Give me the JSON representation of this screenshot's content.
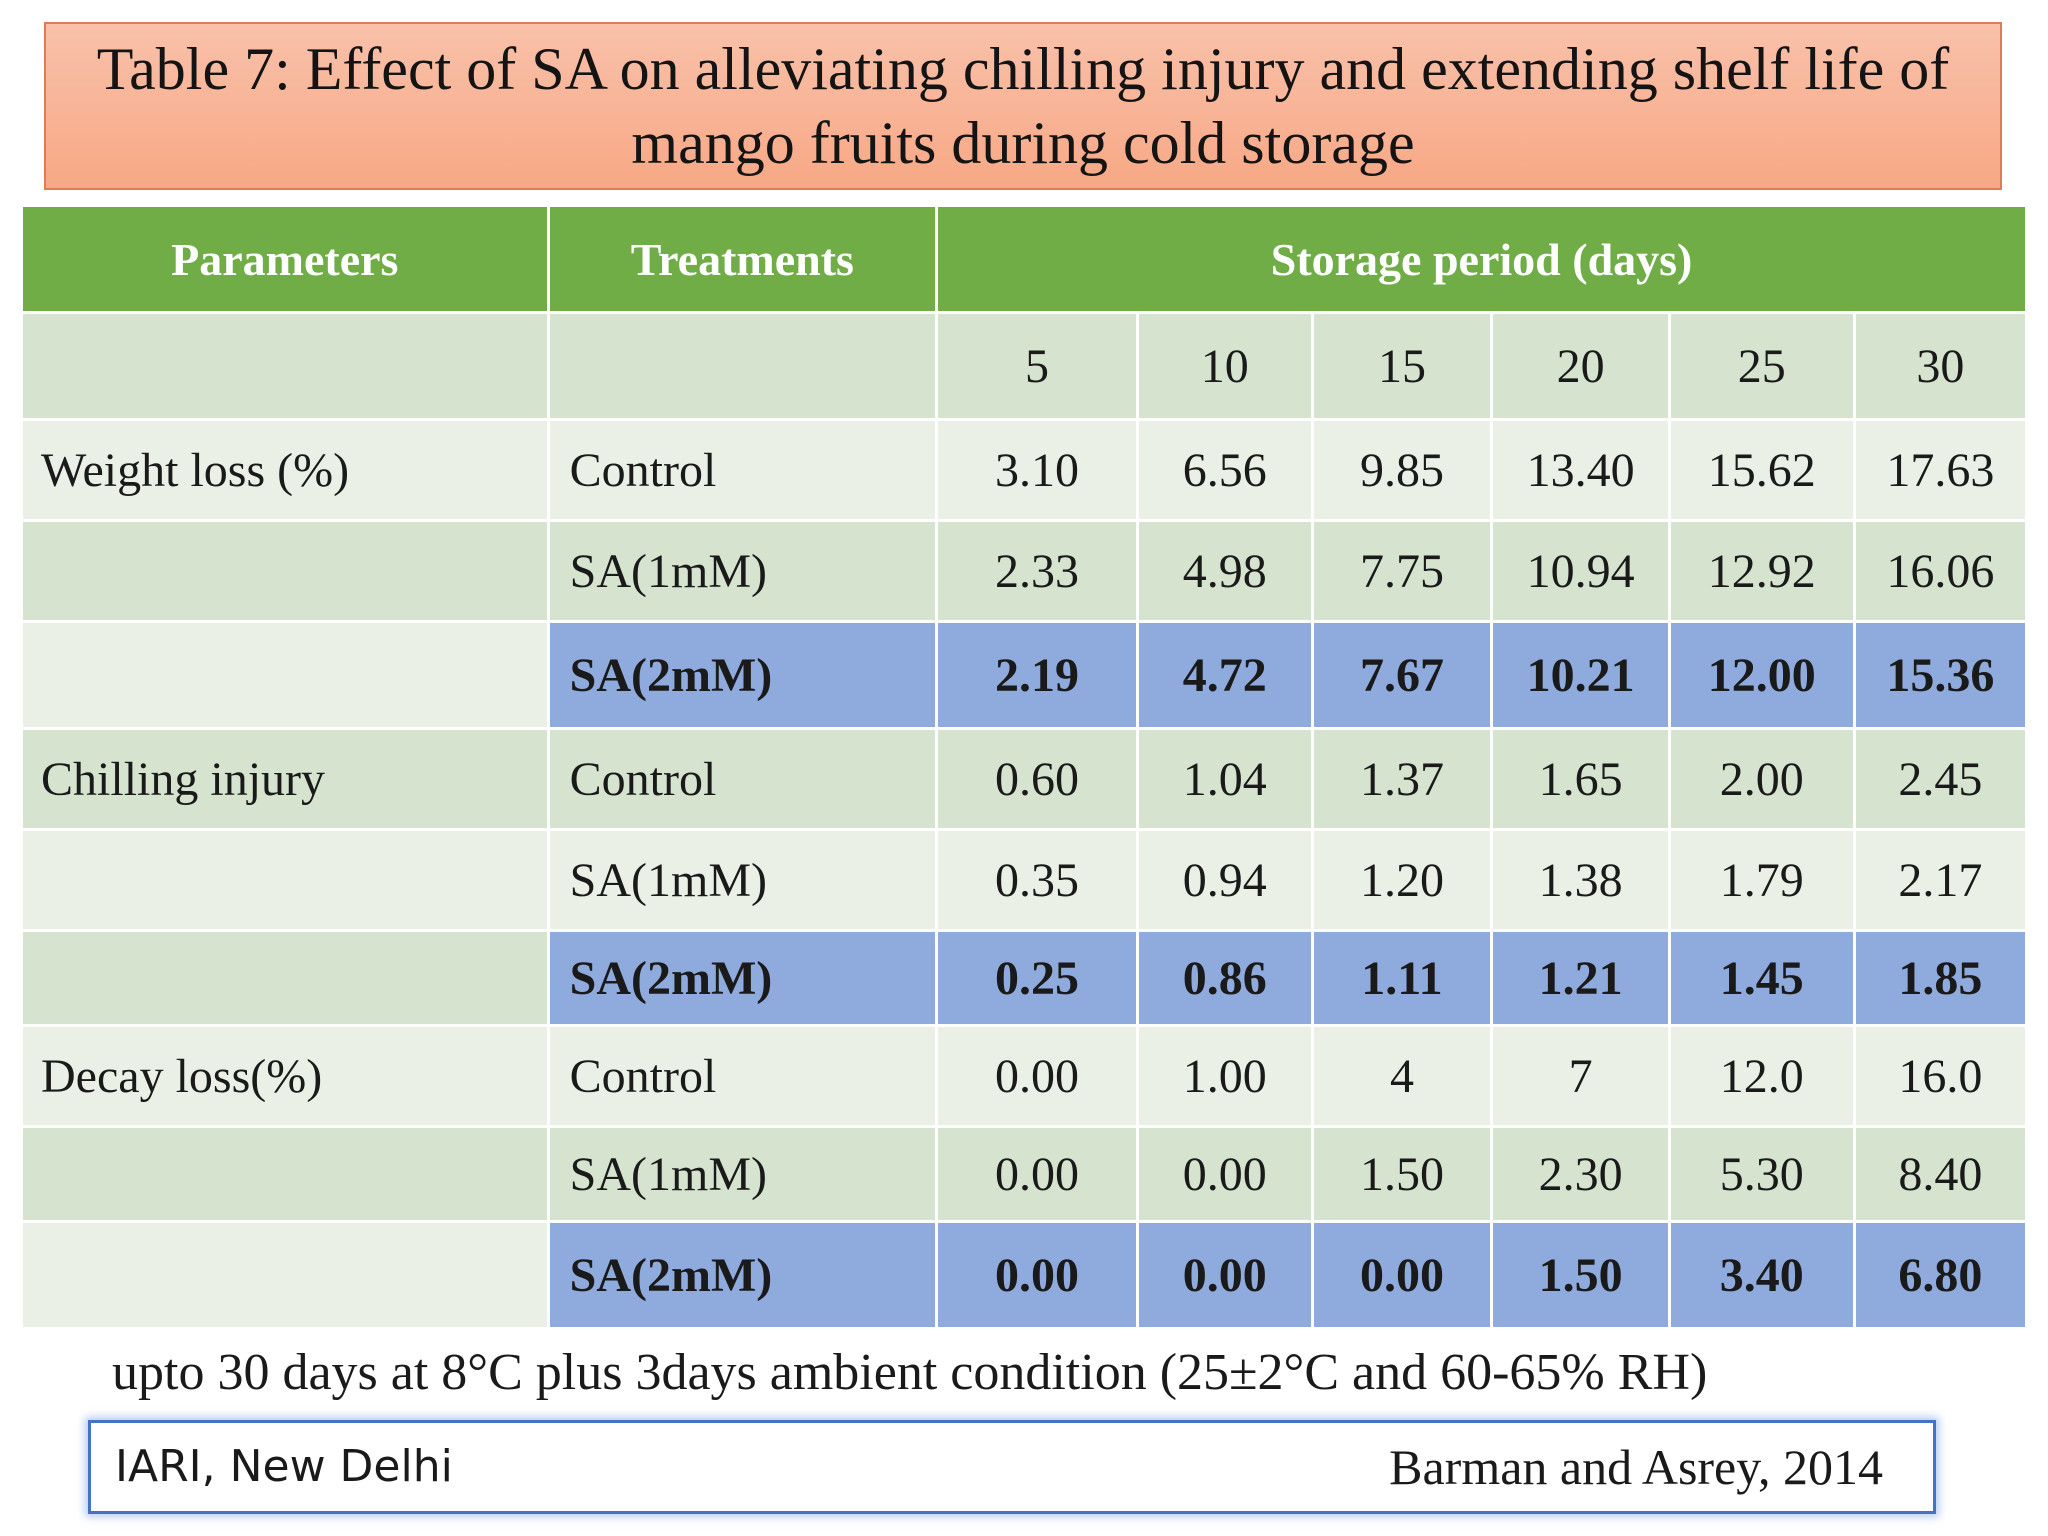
{
  "title": {
    "line1": "Table 7: Effect of SA on alleviating chilling injury and extending shelf life of",
    "line2": "mango fruits during cold storage"
  },
  "table": {
    "headers": {
      "parameters": "Parameters",
      "treatments": "Treatments",
      "storage_period": "Storage period (days)"
    },
    "days": [
      "5",
      "10",
      "15",
      "20",
      "25",
      "30"
    ],
    "rows": [
      {
        "parameter": "Weight loss (%)",
        "treatment": "Control",
        "values": [
          "3.10",
          "6.56",
          "9.85",
          "13.40",
          "15.62",
          "17.63"
        ]
      },
      {
        "parameter": "",
        "treatment": "SA(1mM)",
        "values": [
          "2.33",
          "4.98",
          "7.75",
          "10.94",
          "12.92",
          "16.06"
        ]
      },
      {
        "parameter": "",
        "treatment": "SA(2mM)",
        "values": [
          "2.19",
          "4.72",
          "7.67",
          "10.21",
          "12.00",
          "15.36"
        ]
      },
      {
        "parameter": "Chilling injury",
        "treatment": "Control",
        "values": [
          "0.60",
          "1.04",
          "1.37",
          "1.65",
          "2.00",
          "2.45"
        ]
      },
      {
        "parameter": "",
        "treatment": "SA(1mM)",
        "values": [
          "0.35",
          "0.94",
          "1.20",
          "1.38",
          "1.79",
          "2.17"
        ]
      },
      {
        "parameter": "",
        "treatment": "SA(2mM)",
        "values": [
          "0.25",
          "0.86",
          "1.11",
          "1.21",
          "1.45",
          "1.85"
        ]
      },
      {
        "parameter": "Decay loss(%)",
        "treatment": "Control",
        "values": [
          "0.00",
          "1.00",
          "4",
          "7",
          "12.0",
          "16.0"
        ]
      },
      {
        "parameter": "",
        "treatment": "SA(1mM)",
        "values": [
          "0.00",
          "0.00",
          "1.50",
          "2.30",
          "5.30",
          "8.40"
        ]
      },
      {
        "parameter": "",
        "treatment": "SA(2mM)",
        "values": [
          "0.00",
          "0.00",
          "0.00",
          "1.50",
          "3.40",
          "6.80"
        ]
      }
    ]
  },
  "footnote": "upto 30 days at 8°C plus 3days ambient condition (25±2°C and 60-65% RH)",
  "footer": {
    "institution": "IARI, New Delhi",
    "citation": "Barman and Asrey, 2014"
  },
  "colors": {
    "title_bg": "#f7a885",
    "header_green": "#70ad47",
    "row_light": "#eaf0e6",
    "row_dark": "#d5e3cf",
    "highlight_blue": "#8faadc",
    "footer_border": "#4472c4"
  }
}
